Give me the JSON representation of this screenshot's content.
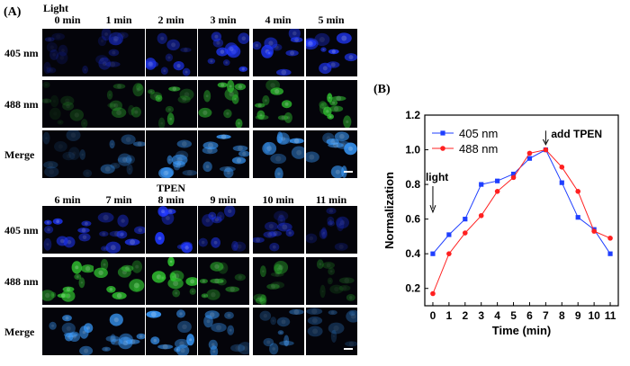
{
  "panel_a": {
    "label": "(A)",
    "row_labels": [
      "405 nm",
      "488 nm",
      "Merge"
    ],
    "top_block": {
      "times": [
        "0 min",
        "1 min",
        "2 min",
        "3 min",
        "4 min",
        "5 min"
      ],
      "pre_label": "Light"
    },
    "bottom_block": {
      "times": [
        "6 min",
        "7 min",
        "8 min",
        "9 min",
        "10 min",
        "11 min"
      ],
      "pre_label": "TPEN"
    }
  },
  "panel_b": {
    "label": "(B)"
  },
  "chart_data": {
    "type": "line",
    "xlabel": "Time (min)",
    "ylabel": "Normalization",
    "xlim": [
      -0.5,
      11.5
    ],
    "ylim": [
      0.1,
      1.2
    ],
    "xticks": [
      0,
      1,
      2,
      3,
      4,
      5,
      6,
      7,
      8,
      9,
      10,
      11
    ],
    "yticks": [
      0.2,
      0.4,
      0.6,
      0.8,
      1.0,
      1.2
    ],
    "ytick_labels": [
      "0.2",
      "0.4",
      "0.6",
      "0.8",
      "1.0",
      "1.2"
    ],
    "legend_position": "top-left",
    "x": [
      0,
      1,
      2,
      3,
      4,
      5,
      6,
      7,
      8,
      9,
      10,
      11
    ],
    "series": [
      {
        "name": "405 nm",
        "color": "#1f3fff",
        "marker": "square",
        "values": [
          0.4,
          0.51,
          0.6,
          0.8,
          0.82,
          0.86,
          0.95,
          1.0,
          0.81,
          0.61,
          0.54,
          0.4
        ]
      },
      {
        "name": "488 nm",
        "color": "#ff2020",
        "marker": "circle",
        "values": [
          0.17,
          0.4,
          0.52,
          0.62,
          0.76,
          0.84,
          0.98,
          1.0,
          0.9,
          0.76,
          0.53,
          0.49
        ]
      }
    ],
    "annotations": [
      {
        "text": "light",
        "x": 0,
        "y": 0.4
      },
      {
        "text": "add TPEN",
        "x": 7,
        "y": 1.0
      }
    ]
  },
  "colors": {
    "ch405": "#2038ff",
    "ch488": "#30c030",
    "merge": "#3a9cff"
  }
}
